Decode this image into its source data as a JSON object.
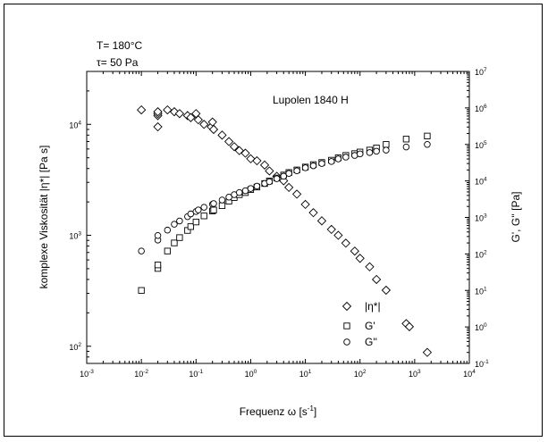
{
  "chart_data": {
    "type": "scatter",
    "title": "",
    "annotations": [
      "T= 180°C",
      "τ= 50 Pa",
      "Lupolen 1840 H"
    ],
    "x_axis": {
      "label": "Frequenz ω [s⁻¹]",
      "label_base": "Frequenz ω [s",
      "label_exp": "-1",
      "label_tail": "]",
      "scale": "log",
      "range": [
        0.001,
        10000
      ],
      "tick_exponents": [
        -3,
        -2,
        -1,
        0,
        1,
        2,
        3,
        4
      ]
    },
    "y_left_axis": {
      "label": "komplexe Viskosität |η*| [Pa s]",
      "scale": "log",
      "range": [
        70,
        30000
      ],
      "tick_exponents": [
        2,
        3,
        4
      ]
    },
    "y_right_axis": {
      "label": "G', G'' [Pa]",
      "scale": "log",
      "range": [
        0.1,
        10000000
      ],
      "tick_exponents": [
        -1,
        0,
        1,
        2,
        3,
        4,
        5,
        6,
        7
      ]
    },
    "legend_position": "bottom-right",
    "series": [
      {
        "name": "|η*|",
        "marker": "diamond",
        "axis": "left",
        "x": [
          0.01,
          0.02,
          0.02,
          0.02,
          0.02,
          0.03,
          0.04,
          0.05,
          0.07,
          0.08,
          0.1,
          0.11,
          0.14,
          0.19,
          0.2,
          0.21,
          0.3,
          0.4,
          0.5,
          0.62,
          0.8,
          1.0,
          1.3,
          1.8,
          2.2,
          3.0,
          4.0,
          5.0,
          7.0,
          10.0,
          14.0,
          20.0,
          30.0,
          40.0,
          55.0,
          80.0,
          100.0,
          150.0,
          200.0,
          300.0,
          700.0,
          800.0,
          1700.0
        ],
        "y": [
          13500,
          9500,
          12000,
          12500,
          13000,
          13500,
          13000,
          12500,
          12000,
          11500,
          12500,
          11000,
          10000,
          9500,
          10500,
          9000,
          8000,
          7000,
          6300,
          5800,
          5500,
          4900,
          4700,
          4300,
          3800,
          3400,
          3100,
          2700,
          2350,
          1900,
          1600,
          1350,
          1130,
          1000,
          850,
          720,
          620,
          520,
          400,
          320,
          160,
          150,
          88
        ]
      },
      {
        "name": "G'",
        "marker": "square",
        "axis": "right",
        "x": [
          0.01,
          0.02,
          0.02,
          0.03,
          0.04,
          0.05,
          0.07,
          0.08,
          0.1,
          0.14,
          0.2,
          0.21,
          0.3,
          0.4,
          0.5,
          0.62,
          0.8,
          1.0,
          1.3,
          1.8,
          2.2,
          3.0,
          4.0,
          5.0,
          7.0,
          10.0,
          14.0,
          20.0,
          30.0,
          40.0,
          55.0,
          80.0,
          100.0,
          150.0,
          200.0,
          300.0,
          700.0,
          1700.0
        ],
        "y": [
          10,
          40,
          50,
          120,
          200,
          280,
          440,
          560,
          750,
          1100,
          1500,
          1600,
          2100,
          2800,
          3500,
          4200,
          4800,
          5800,
          6800,
          8500,
          10000,
          12000,
          14500,
          17000,
          20000,
          24000,
          28000,
          32000,
          37000,
          43000,
          50000,
          56000,
          62000,
          70000,
          80000,
          100000,
          140000,
          170000
        ]
      },
      {
        "name": "G''",
        "marker": "circle",
        "axis": "right",
        "x": [
          0.01,
          0.02,
          0.02,
          0.03,
          0.04,
          0.05,
          0.07,
          0.08,
          0.1,
          0.11,
          0.14,
          0.2,
          0.21,
          0.3,
          0.4,
          0.5,
          0.62,
          0.8,
          1.0,
          1.3,
          1.8,
          2.2,
          3.0,
          4.0,
          5.0,
          7.0,
          10.0,
          14.0,
          20.0,
          30.0,
          40.0,
          55.0,
          80.0,
          100.0,
          150.0,
          200.0,
          300.0,
          700.0,
          1700.0
        ],
        "y": [
          120,
          240,
          320,
          450,
          650,
          800,
          1050,
          1250,
          1450,
          1600,
          1900,
          2300,
          2400,
          3000,
          3600,
          4200,
          4800,
          5400,
          6200,
          7200,
          8500,
          9500,
          11500,
          13500,
          16000,
          19000,
          23000,
          26000,
          30000,
          34000,
          40000,
          45000,
          50000,
          55000,
          60000,
          65000,
          70000,
          85000,
          100000
        ]
      }
    ]
  }
}
